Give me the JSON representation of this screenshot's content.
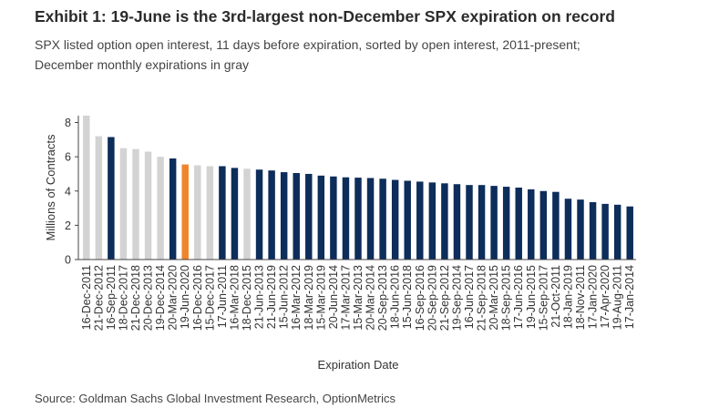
{
  "header": {
    "title": "Exhibit 1: 19-June is the 3rd-largest non-December SPX expiration on record",
    "subtitle_line1": "SPX listed option open interest, 11 days before expiration, sorted by open interest, 2011-present;",
    "subtitle_line2": "December monthly expirations in gray"
  },
  "footer": {
    "source": "Source: Goldman Sachs Global Investment Research, OptionMetrics"
  },
  "colors": {
    "navy": "#0d2d5a",
    "gray": "#d3d3d3",
    "orange": "#f0842c",
    "axis": "#444444"
  },
  "chart_data": {
    "type": "bar",
    "xlabel": "Expiration Date",
    "ylabel": "Millions of Contracts",
    "ylim": [
      0,
      8.4
    ],
    "yticks": [
      0,
      2,
      4,
      6,
      8
    ],
    "grid": false,
    "legend": "none",
    "categories": [
      "16-Dec-2011",
      "21-Dec-2012",
      "16-Sep-2011",
      "18-Dec-2017",
      "21-Dec-2018",
      "20-Dec-2013",
      "19-Dec-2014",
      "20-Mar-2020",
      "19-Jun-2020",
      "16-Dec-2016",
      "15-Dec-2017",
      "17-Jun-2011",
      "16-Mar-2018",
      "18-Dec-2015",
      "21-Jun-2013",
      "21-Jun-2019",
      "15-Jun-2012",
      "16-Mar-2012",
      "18-Mar-2019",
      "15-Mar-2019",
      "20-Jun-2014",
      "17-Mar-2017",
      "15-Mar-2013",
      "20-Mar-2014",
      "20-Sep-2013",
      "18-Jun-2016",
      "15-Jun-2018",
      "16-Sep-2016",
      "20-Sep-2019",
      "21-Sep-2012",
      "19-Sep-2014",
      "16-Jun-2017",
      "21-Sep-2018",
      "20-Mar-2015",
      "18-Sep-2015",
      "17-Jun-2016",
      "19-Jun-2015",
      "15-Sep-2017",
      "21-Oct-2011",
      "18-Jan-2019",
      "18-Nov-2011",
      "17-Jan-2020",
      "17-Apr-2020",
      "19-Aug-2011",
      "17-Jan-2014"
    ],
    "values": [
      8.4,
      7.2,
      7.15,
      6.5,
      6.45,
      6.3,
      6.0,
      5.9,
      5.55,
      5.5,
      5.45,
      5.45,
      5.35,
      5.3,
      5.25,
      5.2,
      5.1,
      5.05,
      5.0,
      4.9,
      4.85,
      4.8,
      4.78,
      4.76,
      4.72,
      4.65,
      4.6,
      4.55,
      4.5,
      4.45,
      4.4,
      4.35,
      4.35,
      4.3,
      4.25,
      4.2,
      4.1,
      4.0,
      3.95,
      3.55,
      3.5,
      3.35,
      3.25,
      3.2,
      3.1
    ],
    "bar_colors": [
      "gray",
      "gray",
      "navy",
      "gray",
      "gray",
      "gray",
      "gray",
      "navy",
      "orange",
      "gray",
      "gray",
      "navy",
      "navy",
      "gray",
      "navy",
      "navy",
      "navy",
      "navy",
      "navy",
      "navy",
      "navy",
      "navy",
      "navy",
      "navy",
      "navy",
      "navy",
      "navy",
      "navy",
      "navy",
      "navy",
      "navy",
      "navy",
      "navy",
      "navy",
      "navy",
      "navy",
      "navy",
      "navy",
      "navy",
      "navy",
      "navy",
      "navy",
      "navy",
      "navy",
      "navy"
    ]
  }
}
